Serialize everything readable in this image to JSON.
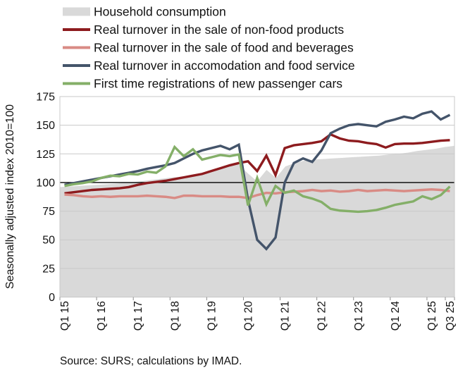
{
  "source": "Source: SURS; calculations by IMAD.",
  "colors": {
    "background": "#ffffff",
    "gridline": "#c9c9c9",
    "reference_line": "#000000",
    "text": "#111111"
  },
  "chart_data": {
    "type": "line",
    "title": "",
    "xlabel": "",
    "ylabel": "Seasonally adjusted index 2010=100",
    "ylim": [
      0,
      175
    ],
    "ytick_interval": 25,
    "reference_line": 100,
    "grid": "horizontal",
    "legend_position": "top-left",
    "categories": [
      "Q1 15",
      "Q2 15",
      "Q3 15",
      "Q4 15",
      "Q1 16",
      "Q2 16",
      "Q3 16",
      "Q4 16",
      "Q1 17",
      "Q2 17",
      "Q3 17",
      "Q4 17",
      "Q1 18",
      "Q2 18",
      "Q3 18",
      "Q4 18",
      "Q1 19",
      "Q2 19",
      "Q3 19",
      "Q4 19",
      "Q1 20",
      "Q2 20",
      "Q3 20",
      "Q4 20",
      "Q1 21",
      "Q2 21",
      "Q3 21",
      "Q4 21",
      "Q1 22",
      "Q2 22",
      "Q3 22",
      "Q4 22",
      "Q1 23",
      "Q2 23",
      "Q3 23",
      "Q4 23",
      "Q1 24",
      "Q2 24",
      "Q3 24",
      "Q4 24",
      "Q1 25",
      "Q2 25",
      "Q3 25"
    ],
    "xtick_labels": [
      "Q1 15",
      "Q1 16",
      "Q1 17",
      "Q1 18",
      "Q1 19",
      "Q1 20",
      "Q1 21",
      "Q1 22",
      "Q1 23",
      "Q1 24",
      "Q1 25",
      "Q3 25"
    ],
    "xtick_indices": [
      0,
      4,
      8,
      12,
      16,
      20,
      24,
      28,
      32,
      36,
      40,
      42
    ],
    "series": [
      {
        "name": "Household consumption",
        "type": "area",
        "color": "#d9d9d9",
        "values": [
          96,
          96.5,
          97,
          97.5,
          98,
          98.5,
          99,
          100,
          100.5,
          101.5,
          102.5,
          103.5,
          104.5,
          105,
          106,
          107,
          109,
          111.5,
          114,
          116,
          108,
          101,
          111,
          104,
          114,
          117,
          119,
          120,
          120.5,
          121,
          121.5,
          122,
          122.5,
          123,
          123.5,
          124.5,
          125,
          126,
          127.5,
          128.5,
          129.5,
          131,
          132
        ]
      },
      {
        "name": "Real turnover in the sale of non-food products",
        "type": "line",
        "color": "#8d1b1e",
        "values": [
          90.5,
          91.5,
          92.5,
          93.5,
          94,
          94.5,
          95,
          96,
          98,
          99.5,
          100.5,
          101.5,
          103,
          104.5,
          106,
          107.5,
          110,
          112.5,
          115,
          117,
          118.5,
          110,
          123.5,
          106.5,
          130,
          132.5,
          133.5,
          134.5,
          136,
          142,
          138.5,
          136.5,
          136,
          134.5,
          133.5,
          130.5,
          133.5,
          134,
          134,
          134.5,
          135.5,
          136.5,
          137
        ]
      },
      {
        "name": "Real turnover in the sale of food and beverages",
        "type": "line",
        "color": "#d98b85",
        "values": [
          89.5,
          89,
          88,
          87.5,
          88,
          87.5,
          88,
          88,
          88,
          88.5,
          88,
          87.5,
          86.5,
          88.5,
          88.5,
          88,
          88,
          88,
          87.5,
          87.5,
          86.5,
          89,
          91,
          90.5,
          91.5,
          92,
          92.5,
          93.5,
          92.5,
          93,
          92,
          92.5,
          93.5,
          92.5,
          93,
          93.5,
          93,
          92.5,
          93,
          93.5,
          94,
          93.5,
          92.5
        ]
      },
      {
        "name": "Real turnover in accomodation and food service",
        "type": "line",
        "color": "#44546a",
        "values": [
          98,
          99.5,
          101,
          102.5,
          104,
          105.5,
          107,
          108.5,
          110,
          112,
          113.5,
          115,
          117,
          121,
          125,
          128,
          130,
          132,
          129,
          133,
          85,
          50,
          42,
          52,
          100,
          117,
          121,
          118,
          128,
          143,
          147,
          150,
          151,
          150,
          149,
          153,
          155,
          157.5,
          156,
          160,
          162,
          155,
          159
        ]
      },
      {
        "name": "First time registrations of new passenger cars",
        "type": "line",
        "color": "#84af68",
        "values": [
          97,
          98.5,
          99.5,
          101,
          104,
          106,
          105.5,
          107.5,
          107,
          109.5,
          108.5,
          114,
          131,
          123,
          129,
          120,
          122,
          124,
          123,
          124.5,
          80,
          104,
          81,
          97,
          91,
          93,
          88,
          86,
          83,
          77,
          75.5,
          75,
          74.5,
          75,
          76,
          78,
          80.5,
          82,
          83.5,
          88,
          85.5,
          89,
          96.5
        ]
      }
    ]
  }
}
